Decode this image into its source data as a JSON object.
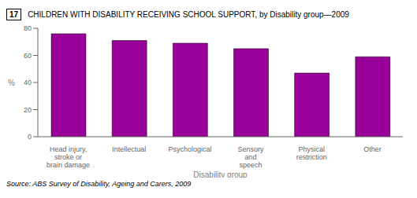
{
  "chart_data": {
    "type": "bar",
    "title_number": "17",
    "title": "CHILDREN WITH DISABILITY RECEIVING SCHOOL SUPPORT, by Disability group—2009",
    "categories": [
      "Head injury,\nstroke or\nbrain damage",
      "Intellectual",
      "Psychological",
      "Sensory\nand\nspeech",
      "Physical\nrestriction",
      "Other"
    ],
    "values": [
      76,
      71,
      69,
      65,
      47,
      59
    ],
    "color": "#990099",
    "xlabel": "Disability group",
    "ylabel": "%",
    "ylim": [
      0,
      80
    ],
    "yticks": [
      0,
      20,
      40,
      60,
      80
    ],
    "grid": false,
    "source": "Source: ABS Survey of Disability, Ageing and Carers, 2009"
  }
}
